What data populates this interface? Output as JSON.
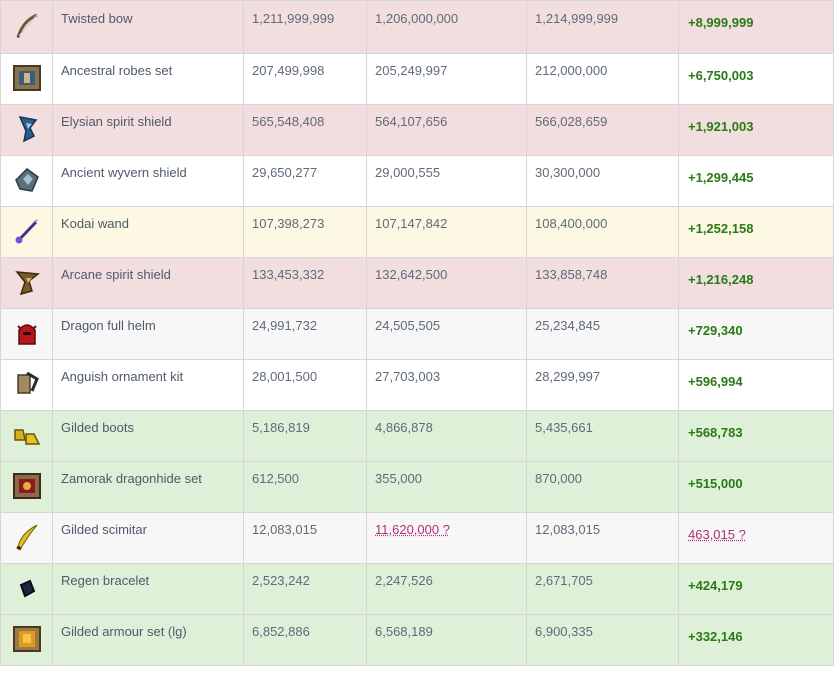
{
  "rows": [
    {
      "icon": "twisted-bow-icon",
      "bg": "pink",
      "name": "Twisted bow",
      "buy": "1,211,999,999",
      "low": "1,206,000,000",
      "high": "1,214,999,999",
      "margin": "+8,999,999",
      "low_flag": false,
      "margin_flag": false
    },
    {
      "icon": "ancestral-robes-set-icon",
      "bg": "white",
      "name": "Ancestral robes set",
      "buy": "207,499,998",
      "low": "205,249,997",
      "high": "212,000,000",
      "margin": "+6,750,003",
      "low_flag": false,
      "margin_flag": false
    },
    {
      "icon": "elysian-spirit-shield-icon",
      "bg": "pink",
      "name": "Elysian spirit shield",
      "buy": "565,548,408",
      "low": "564,107,656",
      "high": "566,028,659",
      "margin": "+1,921,003",
      "low_flag": false,
      "margin_flag": false
    },
    {
      "icon": "ancient-wyvern-shield-icon",
      "bg": "white",
      "name": "Ancient wyvern shield",
      "buy": "29,650,277",
      "low": "29,000,555",
      "high": "30,300,000",
      "margin": "+1,299,445",
      "low_flag": false,
      "margin_flag": false
    },
    {
      "icon": "kodai-wand-icon",
      "bg": "yellow",
      "name": "Kodai wand",
      "buy": "107,398,273",
      "low": "107,147,842",
      "high": "108,400,000",
      "margin": "+1,252,158",
      "low_flag": false,
      "margin_flag": false
    },
    {
      "icon": "arcane-spirit-shield-icon",
      "bg": "pink",
      "name": "Arcane spirit shield",
      "buy": "133,453,332",
      "low": "132,642,500",
      "high": "133,858,748",
      "margin": "+1,216,248",
      "low_flag": false,
      "margin_flag": false
    },
    {
      "icon": "dragon-full-helm-icon",
      "bg": "grey",
      "name": "Dragon full helm",
      "buy": "24,991,732",
      "low": "24,505,505",
      "high": "25,234,845",
      "margin": "+729,340",
      "low_flag": false,
      "margin_flag": false
    },
    {
      "icon": "anguish-ornament-kit-icon",
      "bg": "white",
      "name": "Anguish ornament kit",
      "buy": "28,001,500",
      "low": "27,703,003",
      "high": "28,299,997",
      "margin": "+596,994",
      "low_flag": false,
      "margin_flag": false
    },
    {
      "icon": "gilded-boots-icon",
      "bg": "green",
      "name": "Gilded boots",
      "buy": "5,186,819",
      "low": "4,866,878",
      "high": "5,435,661",
      "margin": "+568,783",
      "low_flag": false,
      "margin_flag": false
    },
    {
      "icon": "zamorak-dragonhide-set-icon",
      "bg": "green",
      "name": "Zamorak dragonhide set",
      "buy": "612,500",
      "low": "355,000",
      "high": "870,000",
      "margin": "+515,000",
      "low_flag": false,
      "margin_flag": false
    },
    {
      "icon": "gilded-scimitar-icon",
      "bg": "grey",
      "name": "Gilded scimitar",
      "buy": "12,083,015",
      "low": "11,620,000 ?",
      "high": "12,083,015",
      "margin": "463,015 ?",
      "low_flag": true,
      "margin_flag": true
    },
    {
      "icon": "regen-bracelet-icon",
      "bg": "green",
      "name": "Regen bracelet",
      "buy": "2,523,242",
      "low": "2,247,526",
      "high": "2,671,705",
      "margin": "+424,179",
      "low_flag": false,
      "margin_flag": false
    },
    {
      "icon": "gilded-armour-set-lg-icon",
      "bg": "green",
      "name": "Gilded armour set (lg)",
      "buy": "6,852,886",
      "low": "6,568,189",
      "high": "6,900,335",
      "margin": "+332,146",
      "low_flag": false,
      "margin_flag": false
    }
  ],
  "colors": {
    "margin_positive": "#2a7a15",
    "flagged": "#b0307a",
    "row_pink": "#f2dede",
    "row_yellow": "#fcf8e3",
    "row_green": "#dff0d8",
    "row_grey": "#f7f7f7"
  }
}
